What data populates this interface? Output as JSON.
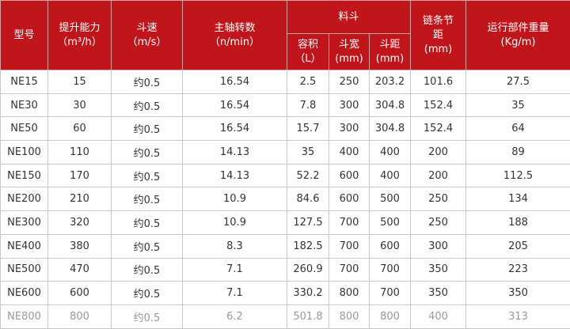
{
  "header": {
    "model": "型号",
    "capacity": [
      "提升能力",
      "（m³/h）"
    ],
    "speed": [
      "斗速",
      "（m/s）"
    ],
    "rpm": [
      "主轴转数",
      "（n/min）"
    ],
    "bucket": "料斗",
    "volume": [
      "容积",
      "（L）"
    ],
    "width": [
      "斗宽",
      "(mm)"
    ],
    "pitch": [
      "斗距",
      "(mm)"
    ],
    "chain": [
      "链条节",
      "距",
      "(mm)"
    ],
    "weight": [
      "运行部件重量",
      "(Kg/m)"
    ]
  },
  "rows": [
    [
      "NE15",
      "15",
      "约0.5",
      "16.54",
      "2.5",
      "250",
      "203.2",
      "101.6",
      "27.5"
    ],
    [
      "NE30",
      "30",
      "约0.5",
      "16.54",
      "7.8",
      "300",
      "304.8",
      "152.4",
      "35"
    ],
    [
      "NE50",
      "60",
      "约0.5",
      "16.54",
      "15.7",
      "300",
      "304.8",
      "152.4",
      "64"
    ],
    [
      "NE100",
      "110",
      "约0.5",
      "14.13",
      "35",
      "400",
      "400",
      "200",
      "89"
    ],
    [
      "NE150",
      "170",
      "约0.5",
      "14.13",
      "52.2",
      "600",
      "400",
      "200",
      "112.5"
    ],
    [
      "NE200",
      "210",
      "约0.5",
      "10.9",
      "84.6",
      "600",
      "500",
      "250",
      "134"
    ],
    [
      "NE300",
      "320",
      "约0.5",
      "10.9",
      "127.5",
      "700",
      "500",
      "250",
      "188"
    ],
    [
      "NE400",
      "380",
      "约0.5",
      "8.3",
      "182.5",
      "700",
      "600",
      "300",
      "205"
    ],
    [
      "NE500",
      "470",
      "约0.5",
      "7.1",
      "260.9",
      "700",
      "700",
      "350",
      "223"
    ],
    [
      "NE600",
      "600",
      "约0.5",
      "7.1",
      "330.2",
      "800",
      "700",
      "350",
      "350"
    ],
    [
      "NE800",
      "800",
      "约0.5",
      "6.2",
      "501.8",
      "800",
      "800",
      "400",
      "313"
    ]
  ],
  "colors": {
    "header_bg": "#c0161b",
    "header_text": "#ffffff"
  }
}
